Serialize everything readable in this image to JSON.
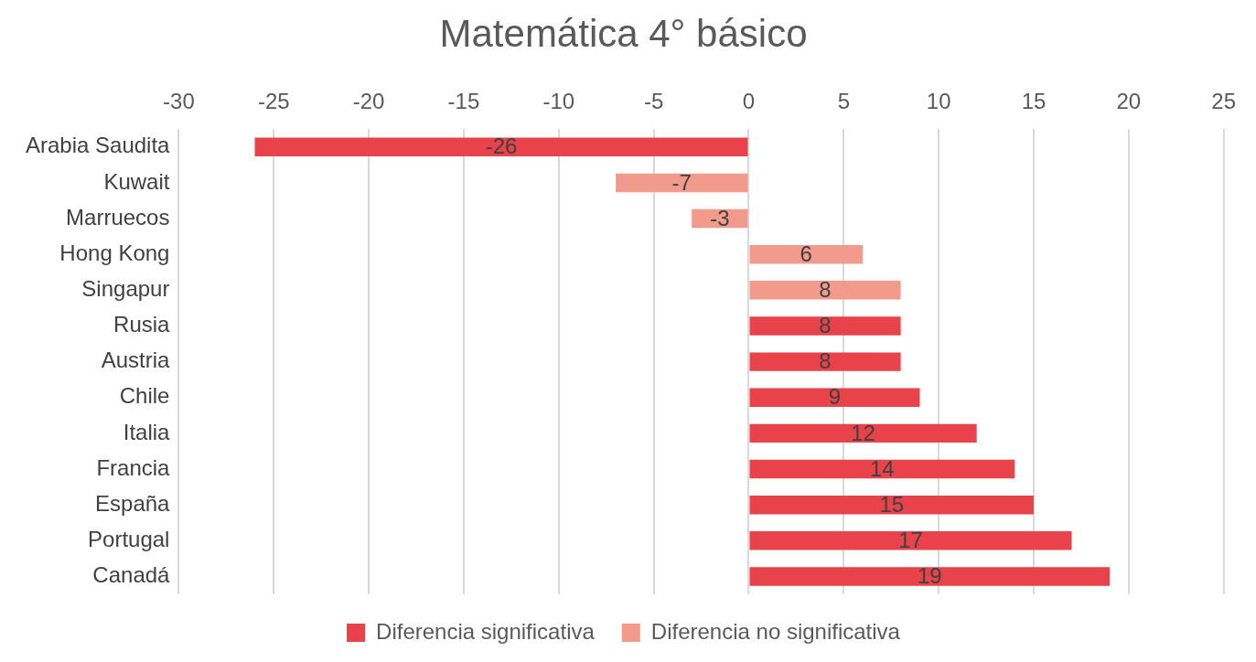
{
  "chart_data": {
    "type": "bar",
    "orientation": "horizontal",
    "stacked": true,
    "title": "Matemática 4° básico",
    "categories": [
      "Arabia Saudita",
      "Kuwait",
      "Marruecos",
      "Hong Kong",
      "Singapur",
      "Rusia",
      "Austria",
      "Chile",
      "Italia",
      "Francia",
      "España",
      "Portugal",
      "Canadá"
    ],
    "series": [
      {
        "name": "Diferencia significativa",
        "color": "#e8424a",
        "values": [
          -26,
          null,
          null,
          null,
          null,
          8,
          8,
          9,
          12,
          14,
          15,
          17,
          19
        ]
      },
      {
        "name": "Diferencia no significativa",
        "color": "#f29a8b",
        "values": [
          null,
          -7,
          -3,
          6,
          8,
          null,
          null,
          null,
          null,
          null,
          null,
          null,
          null
        ]
      }
    ],
    "xlim": [
      -30,
      25
    ],
    "xticks": [
      -30,
      -25,
      -20,
      -15,
      -10,
      -5,
      0,
      5,
      10,
      15,
      20,
      25
    ],
    "grid": "x",
    "legend": "bottom",
    "data_labels": true
  }
}
